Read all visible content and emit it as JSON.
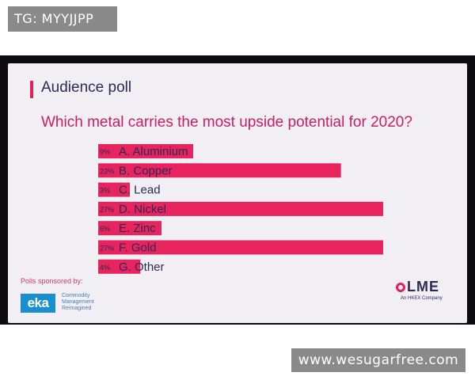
{
  "watermarks": {
    "top": "TG: MYYJJPP",
    "bottom": "www.wesugarfree.com"
  },
  "slide": {
    "section_title": "Audience poll",
    "question": "Which metal carries the most upside potential for 2020?",
    "sponsor_label": "Polls sponsored by:",
    "eka_logo": "eka",
    "eka_tagline": [
      "Commodity",
      "Management",
      "Reimagined"
    ],
    "lme_logo": "LME",
    "lme_subtitle": "An HKEX Company"
  },
  "colors": {
    "bar": "#e8245e",
    "question": "#c81e63",
    "text": "#2b2b55",
    "accent": "#e2215d"
  },
  "chart_data": {
    "type": "bar",
    "orientation": "horizontal",
    "title": "Which metal carries the most upside potential for 2020?",
    "categories": [
      "A. Aluminium",
      "B. Copper",
      "C. Lead",
      "D. Nickel",
      "E. Zinc",
      "F. Gold",
      "G. Other"
    ],
    "values": [
      9,
      23,
      3,
      27,
      6,
      27,
      4
    ],
    "value_labels": [
      "9%",
      "23%",
      "3%",
      "27%",
      "6%",
      "27%",
      "4%"
    ],
    "unit": "%",
    "xlim": [
      0,
      27
    ],
    "grid": false,
    "legend": "none"
  }
}
